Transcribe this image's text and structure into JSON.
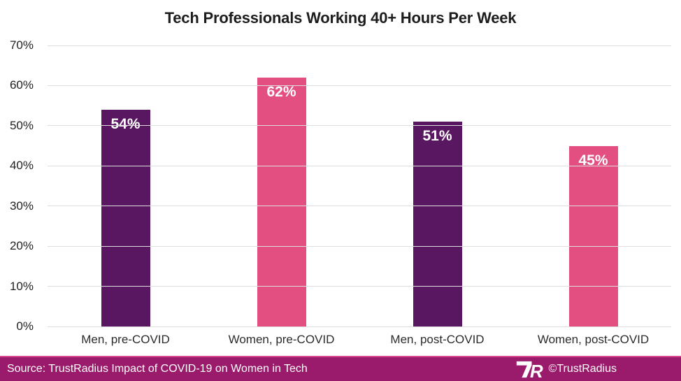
{
  "title": "Tech Professionals Working 40+ Hours Per Week",
  "chart_data": {
    "type": "bar",
    "title": "Tech Professionals Working 40+ Hours Per Week",
    "categories": [
      "Men, pre-COVID",
      "Women, pre-COVID",
      "Men, post-COVID",
      "Women, post-COVID"
    ],
    "values": [
      54,
      62,
      51,
      45
    ],
    "value_labels": [
      "54%",
      "62%",
      "51%",
      "45%"
    ],
    "bar_colors": [
      "#5a1761",
      "#e44f82",
      "#5a1761",
      "#e44f82"
    ],
    "xlabel": "",
    "ylabel": "",
    "ylim": [
      0,
      70
    ],
    "yticks": [
      0,
      10,
      20,
      30,
      40,
      50,
      60,
      70
    ],
    "ytick_labels": [
      "0%",
      "10%",
      "20%",
      "30%",
      "40%",
      "50%",
      "60%",
      "70%"
    ],
    "grid": true,
    "legend": false,
    "value_label_position": "inside-top",
    "value_label_color": "#ffffff"
  },
  "colors": {
    "bar_dark_purple": "#5a1761",
    "bar_pink": "#e44f82",
    "gridline": "#dedede",
    "title_text": "#1c1c1c",
    "axis_text": "#2b2b2b",
    "footer_background": "#9a1b6b",
    "footer_accent_line": "#d6498f"
  },
  "footer": {
    "source_text": "Source: TrustRadius Impact of COVID-19 on Women in Tech",
    "copyright_text": "©TrustRadius",
    "logo": "trustradius-tr-logo"
  }
}
